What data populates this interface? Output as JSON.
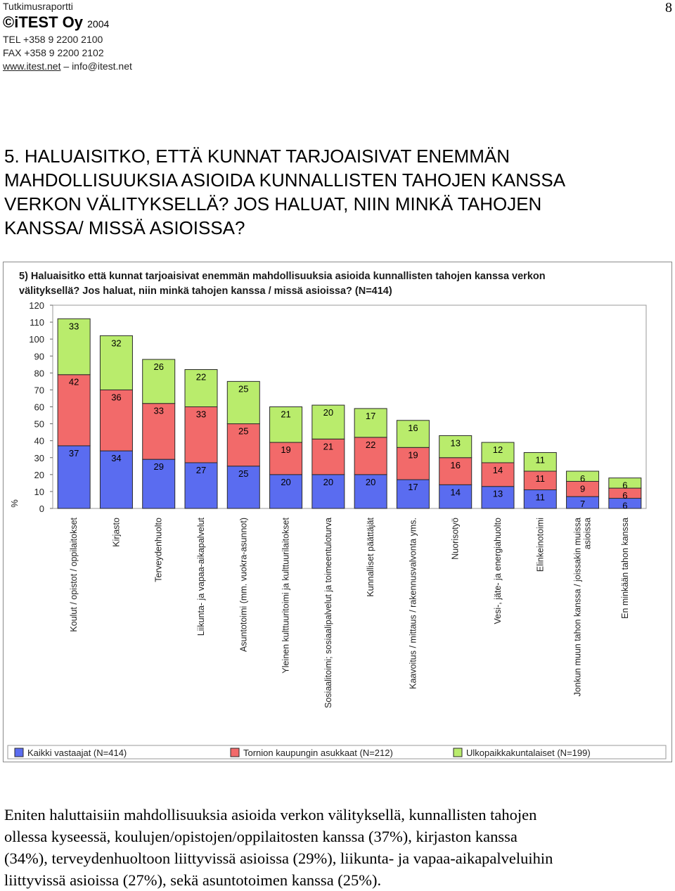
{
  "header": {
    "report_type": "Tutkimusraportti",
    "company": "©iTEST Oy",
    "year": "2004",
    "tel": "TEL +358 9 2200 2100",
    "fax": "FAX +358 9 2200 2102",
    "website": "www.itest.net",
    "separator": "–",
    "email": "info@itest.net"
  },
  "page_number": "8",
  "heading": {
    "lines": [
      "5. HALUAISITKO, ETTÄ KUNNAT TARJOAISIVAT ENEMMÄN",
      "MAHDOLLISUUKSIA ASIOIDA KUNNALLISTEN TAHOJEN KANSSA",
      "VERKON VÄLITYKSELLÄ? JOS HALUAT, NIIN MINKÄ TAHOJEN",
      "KANSSA/ MISSÄ ASIOISSA?"
    ]
  },
  "chart_data": {
    "type": "bar",
    "stacked": true,
    "title": "5) Haluaisitko että kunnat tarjoaisivat enemmän mahdollisuuksia asioida kunnallisten tahojen kanssa verkon välityksellä? Jos haluat, niin minkä tahojen kanssa / missä asioissa?",
    "title_lines": [
      "5) Haluaisitko että kunnat tarjoaisivat enemmän mahdollisuuksia asioida kunnallisten tahojen kanssa verkon",
      "välityksellä? Jos haluat, niin minkä tahojen kanssa / missä asioissa?  (N=414)"
    ],
    "ylabel": "%",
    "xlabel": "",
    "ylim": [
      0,
      120
    ],
    "yticks": [
      0,
      10,
      20,
      30,
      40,
      50,
      60,
      70,
      80,
      90,
      100,
      110,
      120
    ],
    "grid": false,
    "legend_position": "bottom",
    "categories": [
      [
        "Koulut / opistot / oppilaitokset"
      ],
      [
        "Kirjasto"
      ],
      [
        "Terveydenhuolto"
      ],
      [
        "Liikunta- ja vapaa-aikapalvelut"
      ],
      [
        "Asuntotoimi (mm. vuokra-asunnot)"
      ],
      [
        "Yleinen kulttuuritoimi ja kulttuurilaitokset"
      ],
      [
        "Sosiaalitoimi; sosiaalipalvelut ja toimeentuloturva"
      ],
      [
        "Kunnalliset päättäjät"
      ],
      [
        "Kaavoitus / mittaus / rakennusvalvonta yms."
      ],
      [
        "Nuorisotyö"
      ],
      [
        "Vesi-, jäte- ja energiahuolto"
      ],
      [
        "Elinkeinotoimi"
      ],
      [
        "Jonkun muun tahon kanssa / joissakin muissa",
        "asioissa"
      ],
      [
        "En minkään tahon kanssa"
      ]
    ],
    "series": [
      {
        "name": "Kaikki vastaajat (N=414)",
        "color": "#5a6cf0",
        "values": [
          37,
          34,
          29,
          27,
          25,
          20,
          20,
          20,
          17,
          14,
          13,
          11,
          7,
          6
        ]
      },
      {
        "name": "Tornion kaupungin asukkaat (N=212)",
        "color": "#f26a6a",
        "values": [
          42,
          36,
          33,
          33,
          25,
          19,
          21,
          22,
          19,
          16,
          14,
          11,
          9,
          6
        ]
      },
      {
        "name": "Ulkopaikkakuntalaiset (N=199)",
        "color": "#b9ec6c",
        "values": [
          33,
          32,
          26,
          22,
          25,
          21,
          20,
          17,
          16,
          13,
          12,
          11,
          6,
          6
        ]
      }
    ]
  },
  "summary": {
    "lines": [
      "Eniten haluttaisiin mahdollisuuksia asioida verkon välityksellä, kunnallisten tahojen",
      "ollessa kyseessä, koulujen/opistojen/oppilaitosten kanssa (37%), kirjaston kanssa",
      "(34%), terveydenhuoltoon liittyvissä asioissa (29%), liikunta- ja vapaa-aikapalveluihin",
      "liittyvissä asioissa (27%), sekä asuntotoimen kanssa (25%)."
    ]
  }
}
